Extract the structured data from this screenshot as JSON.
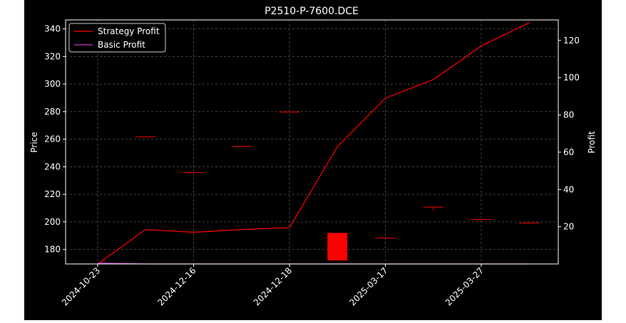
{
  "chart_data": {
    "type": "candlestick+line",
    "title": "P2510-P-7600.DCE",
    "xlabel": "",
    "ylabel_left": "Price",
    "ylabel_right": "Profit",
    "ylim_left": [
      169.5,
      346.5
    ],
    "ylim_right": [
      0,
      131
    ],
    "yticks_left": [
      180,
      200,
      220,
      240,
      260,
      280,
      300,
      320,
      340
    ],
    "yticks_right": [
      20,
      40,
      60,
      80,
      100,
      120
    ],
    "x_tick_labels": [
      "2024-10-23",
      "2024-12-16",
      "2024-12-18",
      "2025-03-17",
      "2025-03-27"
    ],
    "x_tick_indices": [
      0,
      2,
      4,
      6,
      8
    ],
    "grid": true,
    "legend_position": "top-left",
    "candles": [
      {
        "i": 1,
        "open": 262,
        "high": 262,
        "low": 262,
        "close": 262,
        "color": "#ff0000"
      },
      {
        "i": 2,
        "open": 236,
        "high": 236,
        "low": 236,
        "close": 236,
        "color": "#ff0000"
      },
      {
        "i": 3,
        "open": 255,
        "high": 255,
        "low": 255,
        "close": 255,
        "color": "#ff0000"
      },
      {
        "i": 4,
        "open": 280,
        "high": 280,
        "low": 280,
        "close": 280,
        "color": "#ff0000"
      },
      {
        "i": 5,
        "open": 192,
        "high": 192,
        "low": 172,
        "close": 172,
        "color": "#ff0000"
      },
      {
        "i": 6,
        "open": 188.5,
        "high": 188.5,
        "low": 188.5,
        "close": 188.5,
        "color": "#ff0000"
      },
      {
        "i": 7,
        "open": 211,
        "high": 211,
        "low": 208,
        "close": 211,
        "color": "#ff0000"
      },
      {
        "i": 8,
        "open": 202,
        "high": 202,
        "low": 202,
        "close": 202,
        "color": "#ff0000"
      },
      {
        "i": 9,
        "open": 199.5,
        "high": 199.5,
        "low": 199.5,
        "close": 199.5,
        "color": "#ff0000"
      }
    ],
    "series": [
      {
        "name": "Strategy Profit",
        "color": "#ff0000",
        "axis": "right",
        "x": [
          0,
          1,
          2,
          3,
          4,
          5,
          6,
          7,
          8,
          9
        ],
        "values": [
          0,
          18.5,
          17,
          18.5,
          19.5,
          63,
          89,
          99,
          117,
          129.5
        ]
      },
      {
        "name": "Basic Profit",
        "color": "#cc33cc",
        "axis": "right",
        "x": [
          0,
          1,
          2,
          3,
          4,
          5,
          6,
          7,
          8,
          9
        ],
        "values": [
          0.5,
          0,
          0,
          0,
          0,
          0,
          0,
          0,
          0,
          0
        ]
      }
    ]
  }
}
